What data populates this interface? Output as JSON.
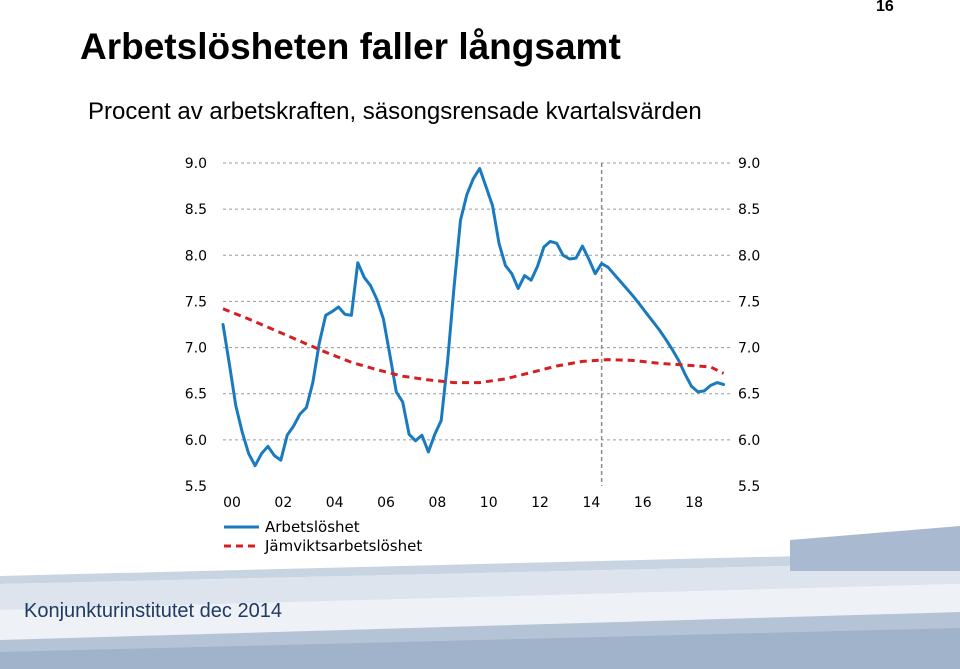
{
  "page_number": "16",
  "title": "Arbetslösheten faller långsamt",
  "subtitle": "Procent av arbetskraften, säsongsrensade kvartalsvärden",
  "footer": "Konjunkturinstitutet dec 2014",
  "chart_data": {
    "type": "line",
    "yticks": [
      "9.0",
      "8.5",
      "8.0",
      "7.5",
      "7.0",
      "6.5",
      "6.0",
      "5.5"
    ],
    "ytick_values": [
      9.0,
      8.5,
      8.0,
      7.5,
      7.0,
      6.5,
      6.0,
      5.5
    ],
    "xticks": [
      "00",
      "02",
      "04",
      "06",
      "08",
      "10",
      "12",
      "14",
      "16",
      "18"
    ],
    "xtick_values": [
      2000,
      2002,
      2004,
      2006,
      2008,
      2010,
      2012,
      2014,
      2016,
      2018
    ],
    "ylim": [
      5.5,
      9.0
    ],
    "xlim": [
      2000,
      2019.75
    ],
    "forecast_marker_x": 2014.75,
    "grid": true,
    "legend_position": "bottom-left",
    "colors": {
      "actual": "#1a7abf",
      "equilibrium": "#d42020",
      "grid": "#9a9a9a"
    },
    "series": [
      {
        "name": "Arbetslöshet",
        "style": "solid",
        "x": [
          2000,
          2000.25,
          2000.5,
          2000.75,
          2001,
          2001.25,
          2001.5,
          2001.75,
          2002,
          2002.25,
          2002.5,
          2002.75,
          2003,
          2003.25,
          2003.5,
          2003.75,
          2004,
          2004.25,
          2004.5,
          2004.75,
          2005,
          2005.25,
          2005.5,
          2005.75,
          2006,
          2006.25,
          2006.5,
          2006.75,
          2007,
          2007.25,
          2007.5,
          2007.75,
          2008,
          2008.25,
          2008.5,
          2008.75,
          2009,
          2009.25,
          2009.5,
          2009.75,
          2010,
          2010.25,
          2010.5,
          2010.75,
          2011,
          2011.25,
          2011.5,
          2011.75,
          2012,
          2012.25,
          2012.5,
          2012.75,
          2013,
          2013.25,
          2013.5,
          2013.75,
          2014,
          2014.25,
          2014.5,
          2014.75,
          2015,
          2015.25,
          2015.5,
          2015.75,
          2016,
          2016.25,
          2016.5,
          2016.75,
          2017,
          2017.25,
          2017.5,
          2017.75,
          2018,
          2018.25,
          2018.5,
          2018.75,
          2019,
          2019.25,
          2019.5
        ],
        "values": [
          7.25,
          6.82,
          6.37,
          6.08,
          5.85,
          5.72,
          5.85,
          5.93,
          5.83,
          5.78,
          6.05,
          6.15,
          6.28,
          6.35,
          6.62,
          7.05,
          7.35,
          7.39,
          7.44,
          7.36,
          7.35,
          7.92,
          7.76,
          7.67,
          7.52,
          7.31,
          6.92,
          6.52,
          6.41,
          6.06,
          5.99,
          6.05,
          5.87,
          6.06,
          6.21,
          6.85,
          7.65,
          8.38,
          8.66,
          8.83,
          8.94,
          8.74,
          8.54,
          8.13,
          7.89,
          7.8,
          7.64,
          7.78,
          7.73,
          7.88,
          8.09,
          8.15,
          8.13,
          8.0,
          7.96,
          7.97,
          8.1,
          7.96,
          7.8,
          7.91,
          7.87,
          7.79,
          7.71,
          7.63,
          7.55,
          7.46,
          7.37,
          7.28,
          7.19,
          7.09,
          6.98,
          6.86,
          6.71,
          6.58,
          6.52,
          6.53,
          6.59,
          6.62,
          6.6
        ]
      },
      {
        "name": "Jämviktsarbetslöshet",
        "style": "dashed",
        "x": [
          2000,
          2001,
          2002,
          2003,
          2004,
          2005,
          2006,
          2007,
          2008,
          2009,
          2010,
          2011,
          2012,
          2013,
          2014,
          2015,
          2016,
          2017,
          2018,
          2019,
          2019.5
        ],
        "values": [
          7.42,
          7.31,
          7.19,
          7.07,
          6.95,
          6.84,
          6.76,
          6.69,
          6.65,
          6.62,
          6.62,
          6.66,
          6.73,
          6.8,
          6.85,
          6.87,
          6.86,
          6.83,
          6.81,
          6.79,
          6.72
        ]
      }
    ]
  }
}
